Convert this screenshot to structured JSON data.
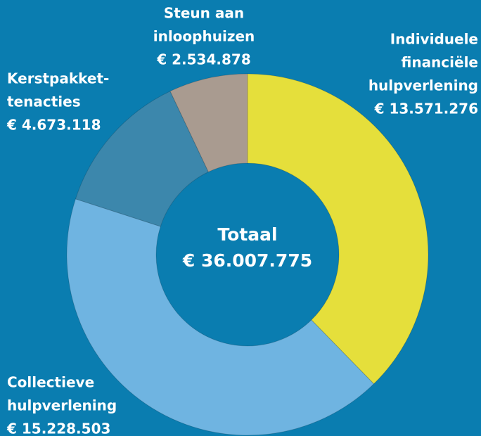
{
  "chart_data": {
    "type": "donut",
    "categories": [
      [
        "Individuele",
        "financiële",
        "hulpverlening"
      ],
      [
        "Collectieve",
        "hulpverlening"
      ],
      [
        "Kerstpakket-",
        "tenacties"
      ],
      [
        "Steun aan",
        "inloophuizen"
      ]
    ],
    "values": [
      13571276,
      15228503,
      4673118,
      2534878
    ],
    "value_labels": [
      "€ 13.571.276",
      "€ 15.228.503",
      "€ 4.673.118",
      "€ 2.534.878"
    ],
    "colors": [
      "#e5df3b",
      "#6fb4e1",
      "#3c87ac",
      "#a99b90"
    ],
    "center_title": "Totaal",
    "center_value": 36007775,
    "center_value_label": "€ 36.007.775"
  }
}
